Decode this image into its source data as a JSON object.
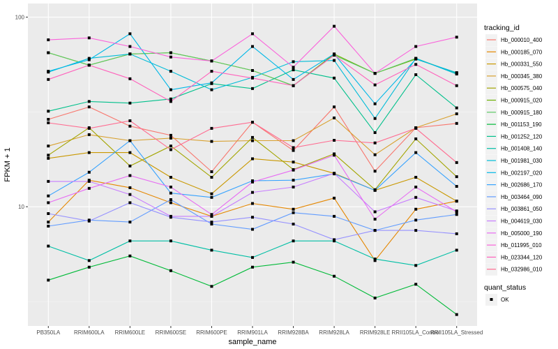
{
  "chart_data": {
    "type": "line",
    "title": "",
    "xlabel": "sample_name",
    "ylabel": "FPKM + 1",
    "y_scale": "log10",
    "ylim": [
      2.35,
      118
    ],
    "y_ticks": [
      10,
      100
    ],
    "y_tick_labels": [
      "10",
      "100"
    ],
    "grid": true,
    "x": [
      "PB350LA",
      "RRIM600LA",
      "RRIM600LE",
      "RRIM600SE",
      "RRIM600PE",
      "RRIM901LA",
      "RRIM928BA",
      "RRIM928LA",
      "RRIM928LE",
      "RRII105LA_Control",
      "RRII105LA_Stressed"
    ],
    "legend": {
      "position": "right",
      "color_title": "tracking_id",
      "shape_title": "quant_status",
      "shape_entries": [
        "OK"
      ]
    },
    "series": [
      {
        "name": "Hb_000010_400",
        "color": "#F8766D",
        "values": [
          28.9,
          33.6,
          26.6,
          23.8,
          15.3,
          27.9,
          19.8,
          33.6,
          15.4,
          26.1,
          27.5
        ]
      },
      {
        "name": "Hb_000185_070",
        "color": "#E58700",
        "values": [
          8.3,
          13.8,
          12.6,
          10.5,
          8.9,
          10.4,
          9.7,
          11.1,
          5.2,
          9.7,
          10.7
        ]
      },
      {
        "name": "Hb_000331_550",
        "color": "#C99800",
        "values": [
          18.0,
          19.3,
          19.3,
          14.3,
          11.7,
          17.9,
          17.2,
          15.0,
          12.2,
          14.3,
          10.7
        ]
      },
      {
        "name": "Hb_000345_380",
        "color": "#D8A02E",
        "values": [
          20.9,
          24.0,
          22.3,
          23.0,
          22.1,
          22.3,
          22.3,
          29.4,
          18.8,
          26.1,
          30.9
        ]
      },
      {
        "name": "Hb_000575_040",
        "color": "#A3A500",
        "values": [
          18.7,
          26.1,
          16.4,
          20.9,
          14.3,
          23.2,
          15.7,
          19.0,
          12.3,
          22.8,
          14.4
        ]
      },
      {
        "name": "Hb_000915_020",
        "color": "#6BB100",
        "values": [
          64.9,
          55.8,
          63.9,
          64.9,
          58.7,
          52.3,
          43.5,
          63.9,
          50.5,
          60.1,
          50.9
        ]
      },
      {
        "name": "Hb_000915_180",
        "color": "#5DC863",
        "values": [
          64.9,
          55.8,
          63.9,
          64.9,
          58.7,
          52.3,
          43.5,
          63.0,
          50.5,
          60.6,
          50.5
        ]
      },
      {
        "name": "Hb_001153_190",
        "color": "#00BA38",
        "values": [
          4.1,
          4.8,
          5.5,
          4.6,
          3.8,
          4.8,
          5.1,
          4.3,
          3.3,
          3.9,
          2.7
        ]
      },
      {
        "name": "Hb_001252_120",
        "color": "#00C08B",
        "values": [
          31.9,
          35.9,
          35.2,
          37.0,
          44.6,
          42.0,
          52.7,
          47.7,
          24.6,
          49.7,
          33.2
        ]
      },
      {
        "name": "Hb_001408_140",
        "color": "#00BFA5",
        "values": [
          6.2,
          5.2,
          6.6,
          6.6,
          5.9,
          5.4,
          6.6,
          6.6,
          5.3,
          4.9,
          5.9
        ]
      },
      {
        "name": "Hb_001981_030",
        "color": "#00BCD8",
        "values": [
          51.3,
          60.6,
          63.9,
          51.8,
          41.4,
          48.1,
          58.2,
          59.1,
          29.2,
          60.6,
          50.1
        ]
      },
      {
        "name": "Hb_002197_020",
        "color": "#00B8E7",
        "values": [
          51.8,
          59.6,
          81.7,
          41.4,
          45.0,
          70.0,
          46.9,
          63.9,
          34.9,
          60.1,
          50.9
        ]
      },
      {
        "name": "Hb_002686_170",
        "color": "#35A2FF",
        "values": [
          11.4,
          15.2,
          22.3,
          11.8,
          11.2,
          13.7,
          13.8,
          14.9,
          12.2,
          19.3,
          12.8
        ]
      },
      {
        "name": "Hb_003464_090",
        "color": "#619CFF",
        "values": [
          7.9,
          8.5,
          8.3,
          10.9,
          8.1,
          7.6,
          9.3,
          8.9,
          7.5,
          8.5,
          9.1
        ]
      },
      {
        "name": "Hb_003861_050",
        "color": "#9590FF",
        "values": [
          9.2,
          8.4,
          10.5,
          8.8,
          8.3,
          8.8,
          8.1,
          6.7,
          7.5,
          7.5,
          7.2
        ]
      },
      {
        "name": "Hb_004619_030",
        "color": "#C77CFF",
        "values": [
          13.6,
          13.6,
          11.6,
          8.9,
          8.9,
          11.9,
          12.7,
          15.0,
          9.4,
          11.2,
          9.5
        ]
      },
      {
        "name": "Hb_005000_190",
        "color": "#E76BF3",
        "values": [
          10.5,
          12.5,
          14.6,
          12.7,
          9.1,
          13.5,
          15.6,
          18.7,
          8.6,
          12.7,
          9.4
        ]
      },
      {
        "name": "Hb_011995_010",
        "color": "#FA62DB",
        "values": [
          75.9,
          77.7,
          70.0,
          61.6,
          58.7,
          81.7,
          54.4,
          89.5,
          50.5,
          70.0,
          78.4
        ]
      },
      {
        "name": "Hb_023344_120",
        "color": "#FF62BC",
        "values": [
          46.9,
          55.8,
          47.3,
          35.9,
          51.8,
          47.7,
          43.5,
          63.0,
          43.9,
          56.3,
          43.5
        ]
      },
      {
        "name": "Hb_032986_010",
        "color": "#FF6C91",
        "values": [
          27.7,
          25.9,
          28.4,
          20.0,
          25.9,
          27.9,
          20.5,
          22.4,
          21.7,
          25.9,
          17.1
        ]
      }
    ]
  }
}
